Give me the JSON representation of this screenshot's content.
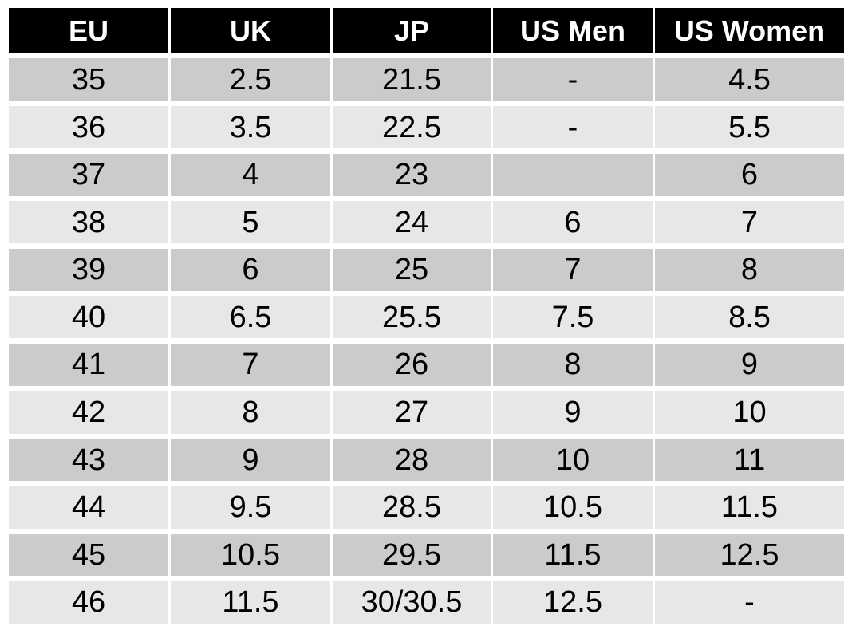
{
  "chart_data": {
    "type": "table",
    "columns": [
      "EU",
      "UK",
      "JP",
      "US Men",
      "US Women"
    ],
    "rows": [
      [
        "35",
        "2.5",
        "21.5",
        "-",
        "4.5"
      ],
      [
        "36",
        "3.5",
        "22.5",
        "-",
        "5.5"
      ],
      [
        "37",
        "4",
        "23",
        "",
        "6"
      ],
      [
        "38",
        "5",
        "24",
        "6",
        "7"
      ],
      [
        "39",
        "6",
        "25",
        "7",
        "8"
      ],
      [
        "40",
        "6.5",
        "25.5",
        "7.5",
        "8.5"
      ],
      [
        "41",
        "7",
        "26",
        "8",
        "9"
      ],
      [
        "42",
        "8",
        "27",
        "9",
        "10"
      ],
      [
        "43",
        "9",
        "28",
        "10",
        "11"
      ],
      [
        "44",
        "9.5",
        "28.5",
        "10.5",
        "11.5"
      ],
      [
        "45",
        "10.5",
        "29.5",
        "11.5",
        "12.5"
      ],
      [
        "46",
        "11.5",
        "30/30.5",
        "12.5",
        "-"
      ]
    ],
    "layout_hints": {
      "header_style": "black bar, white bold text",
      "row_striping": "odd rows dark gray, even rows light gray",
      "grid": "white gaps between cells"
    }
  },
  "colors": {
    "page_bg": "#ffffff",
    "header_bg": "#000000",
    "header_text": "#ffffff",
    "row_dark": "#cbcbcb",
    "row_light": "#e7e7e7",
    "text": "#000000"
  }
}
